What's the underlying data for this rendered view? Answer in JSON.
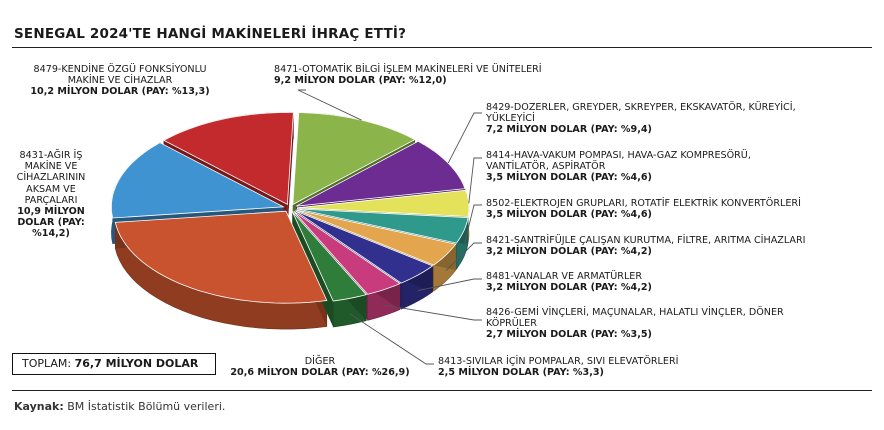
{
  "title": "SENEGAL 2024'TE HANGİ MAKİNELERİ İHRAÇ ETTİ?",
  "total": {
    "label": "TOPLAM:",
    "value": "76,7 MİLYON DOLAR"
  },
  "source": {
    "label": "Kaynak:",
    "text": " BM İstatistik Bölümü verileri."
  },
  "colors": {
    "line": "#555555"
  },
  "chart_data": {
    "type": "pie",
    "title": "SENEGAL 2024'TE HANGİ MAKİNELERİ İHRAÇ ETTİ?",
    "unit": "MİLYON DOLAR",
    "slices": [
      {
        "code": "8471",
        "name": "8471-OTOMATİK BİLGİ İŞLEM MAKİNELERİ VE ÜNİTELERİ",
        "value": 9.2,
        "share": 12.0,
        "value_text": "9,2 MİLYON DOLAR (PAY: %12,0)",
        "color": "#8bb54a"
      },
      {
        "code": "8429",
        "name": "8429-DOZERLER, GREYDER, SKREYPER, EKSKAVATÖR, KÜREYİCİ, YÜKLEYİCİ",
        "value": 7.2,
        "share": 9.4,
        "value_text": "7,2 MİLYON DOLAR (PAY: %9,4)",
        "color": "#6c2c92"
      },
      {
        "code": "8414",
        "name": "8414-HAVA-VAKUM POMPASI, HAVA-GAZ KOMPRESÖRÜ, VANTİLATÖR, ASPİRATÖR",
        "value": 3.5,
        "share": 4.6,
        "value_text": "3,5 MİLYON DOLAR (PAY: %4,6)",
        "color": "#e4e25a"
      },
      {
        "code": "8502",
        "name": "8502-ELEKTROJEN GRUPLARI, ROTATİF ELEKTRİK KONVERTÖRLERİ",
        "value": 3.5,
        "share": 4.6,
        "value_text": "3,5 MİLYON DOLAR (PAY: %4,6)",
        "color": "#2f9a8c"
      },
      {
        "code": "8421",
        "name": "8421-SANTRİFÜJLE ÇALIŞAN KURUTMA, FİLTRE, ARITMA CİHAZLARI",
        "value": 3.2,
        "share": 4.2,
        "value_text": "3,2 MİLYON DOLAR (PAY: %4,2)",
        "color": "#e3a64e"
      },
      {
        "code": "8481",
        "name": "8481-VANALAR VE ARMATÜRLER",
        "value": 3.2,
        "share": 4.2,
        "value_text": "3,2 MİLYON DOLAR (PAY: %4,2)",
        "color": "#32308f"
      },
      {
        "code": "8426",
        "name": "8426-GEMİ VİNÇLERİ, MAÇUNALAR, HALATLI VİNÇLER, DÖNER KÖPRÜLER",
        "value": 2.7,
        "share": 3.5,
        "value_text": "2,7 MİLYON DOLAR (PAY: %3,5)",
        "color": "#c83b7c"
      },
      {
        "code": "8413",
        "name": "8413-SIVILAR İÇİN POMPALAR, SIVI ELEVATÖRLERİ",
        "value": 2.5,
        "share": 3.3,
        "value_text": "2,5 MİLYON DOLAR (PAY: %3,3)",
        "color": "#2e7d3a"
      },
      {
        "code": "DİĞER",
        "name": "DİĞER",
        "value": 20.6,
        "share": 26.9,
        "value_text": "20,6 MİLYON DOLAR (PAY: %26,9)",
        "color": "#c8532e"
      },
      {
        "code": "8431",
        "name": "8431-AĞIR İŞ MAKİNE VE CİHAZLARININ AKSAM VE PARÇALARI",
        "value": 10.9,
        "share": 14.2,
        "value_text": "10,9 MİLYON DOLAR (PAY: %14,2)",
        "color": "#3f93d0"
      },
      {
        "code": "8479",
        "name": "8479-KENDİNE ÖZGÜ FONKSİYONLU MAKİNE VE CİHAZLAR",
        "value": 10.2,
        "share": 13.3,
        "value_text": "10,2 MİLYON DOLAR (PAY: %13,3)",
        "color": "#c22a2d"
      }
    ]
  }
}
